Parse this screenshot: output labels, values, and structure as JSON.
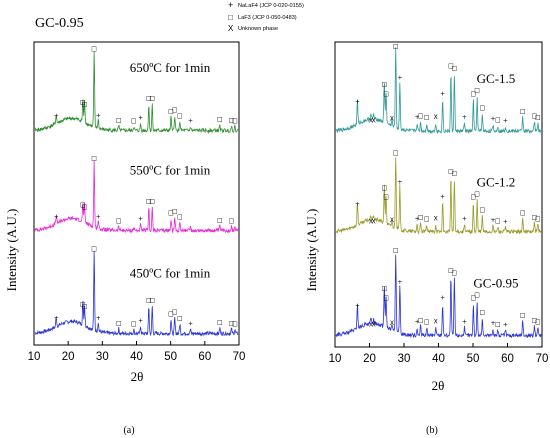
{
  "legend": {
    "items": [
      {
        "symbol": "+",
        "label": "NaLaF4 (JCP 0-020-0155)"
      },
      {
        "symbol": "□",
        "label": "LaF3 (JCP 0-050-0483)"
      },
      {
        "symbol": "X",
        "label": "Unknown phase"
      }
    ]
  },
  "captions": {
    "a": "(a)",
    "b": "(b)"
  },
  "chart_data": [
    {
      "type": "line",
      "panel": "a",
      "title": "GC-0.95",
      "xlabel": "2θ",
      "ylabel": "Intensity (A.U.)",
      "xlim": [
        10,
        70
      ],
      "xticks": [
        10,
        20,
        30,
        40,
        50,
        60,
        70
      ],
      "series": [
        {
          "name": "450ºC for 1min",
          "color": "#2a33d6",
          "offset": 0.02,
          "height": 0.26
        },
        {
          "name": "550ºC for 1min",
          "color": "#e628d6",
          "offset": 0.36,
          "height": 0.22
        },
        {
          "name": "650ºC for 1min",
          "color": "#2f8f2f",
          "offset": 0.69,
          "height": 0.25
        }
      ],
      "peaks": [
        {
          "x": 16.5,
          "h": 0.12,
          "phase": "+"
        },
        {
          "x": 24.3,
          "h": 0.3,
          "phase": "□"
        },
        {
          "x": 24.8,
          "h": 0.27,
          "phase": "□"
        },
        {
          "x": 27.6,
          "h": 1.0,
          "phase": "□"
        },
        {
          "x": 28.8,
          "h": 0.12,
          "phase": "+"
        },
        {
          "x": 34.8,
          "h": 0.06,
          "phase": "□"
        },
        {
          "x": 39.2,
          "h": 0.05,
          "phase": "□"
        },
        {
          "x": 41.2,
          "h": 0.09,
          "phase": "+"
        },
        {
          "x": 43.6,
          "h": 0.35,
          "phase": "□"
        },
        {
          "x": 44.6,
          "h": 0.35,
          "phase": "□"
        },
        {
          "x": 50.1,
          "h": 0.18,
          "phase": "□"
        },
        {
          "x": 51.2,
          "h": 0.2,
          "phase": "□"
        },
        {
          "x": 52.7,
          "h": 0.12,
          "phase": "□"
        },
        {
          "x": 55.8,
          "h": 0.05,
          "phase": "+"
        },
        {
          "x": 64.4,
          "h": 0.07,
          "phase": "□"
        },
        {
          "x": 67.8,
          "h": 0.06,
          "phase": "□"
        },
        {
          "x": 68.8,
          "h": 0.05,
          "phase": "□"
        }
      ]
    },
    {
      "type": "line",
      "panel": "b",
      "title": "",
      "xlabel": "2θ",
      "ylabel": "Intensity (A.U.)",
      "xlim": [
        10,
        70
      ],
      "xticks": [
        10,
        20,
        30,
        40,
        50,
        60,
        70
      ],
      "series": [
        {
          "name": "GC-0.95",
          "color": "#2a33d6",
          "offset": 0.02,
          "height": 0.26
        },
        {
          "name": "GC-1.2",
          "color": "#9a9a2a",
          "offset": 0.36,
          "height": 0.24
        },
        {
          "name": "GC-1.5",
          "color": "#2f9a96",
          "offset": 0.69,
          "height": 0.26
        }
      ],
      "peaks": [
        {
          "x": 16.5,
          "h": 0.3,
          "phase": "+"
        },
        {
          "x": 20.4,
          "h": 0.06,
          "phase": "X"
        },
        {
          "x": 21.2,
          "h": 0.06,
          "phase": "X"
        },
        {
          "x": 24.3,
          "h": 0.52,
          "phase": "□"
        },
        {
          "x": 24.8,
          "h": 0.4,
          "phase": "□"
        },
        {
          "x": 26.5,
          "h": 0.08,
          "phase": "X"
        },
        {
          "x": 27.6,
          "h": 1.0,
          "phase": "□"
        },
        {
          "x": 28.8,
          "h": 0.6,
          "phase": "+"
        },
        {
          "x": 33.8,
          "h": 0.1,
          "phase": "+"
        },
        {
          "x": 34.8,
          "h": 0.12,
          "phase": "□"
        },
        {
          "x": 36.6,
          "h": 0.1,
          "phase": "□"
        },
        {
          "x": 39.2,
          "h": 0.1,
          "phase": "X"
        },
        {
          "x": 41.2,
          "h": 0.4,
          "phase": "+"
        },
        {
          "x": 43.6,
          "h": 0.75,
          "phase": "□"
        },
        {
          "x": 44.6,
          "h": 0.72,
          "phase": "□"
        },
        {
          "x": 47.5,
          "h": 0.1,
          "phase": "+"
        },
        {
          "x": 50.1,
          "h": 0.4,
          "phase": "□"
        },
        {
          "x": 51.2,
          "h": 0.44,
          "phase": "□"
        },
        {
          "x": 52.7,
          "h": 0.22,
          "phase": "□"
        },
        {
          "x": 55.8,
          "h": 0.08,
          "phase": "+"
        },
        {
          "x": 57.2,
          "h": 0.07,
          "phase": "□"
        },
        {
          "x": 59.4,
          "h": 0.06,
          "phase": "+"
        },
        {
          "x": 64.4,
          "h": 0.18,
          "phase": "□"
        },
        {
          "x": 67.8,
          "h": 0.12,
          "phase": "□"
        },
        {
          "x": 68.8,
          "h": 0.1,
          "phase": "□"
        }
      ]
    }
  ]
}
